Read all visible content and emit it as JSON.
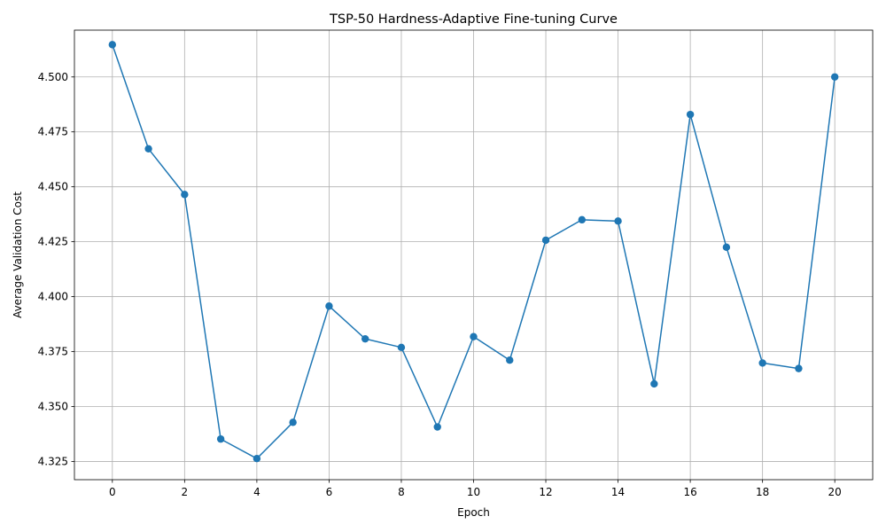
{
  "chart_data": {
    "type": "line",
    "title": "TSP-50 Hardness-Adaptive Fine-tuning Curve",
    "xlabel": "Epoch",
    "ylabel": "Average Validation Cost",
    "x": [
      0,
      1,
      2,
      3,
      4,
      5,
      6,
      7,
      8,
      9,
      10,
      11,
      12,
      13,
      14,
      15,
      16,
      17,
      18,
      19,
      20
    ],
    "series": [
      {
        "values": [
          4.5147,
          4.4673,
          4.4465,
          4.3352,
          4.3263,
          4.3428,
          4.3957,
          4.3808,
          4.3769,
          4.3407,
          4.3818,
          4.3711,
          4.4257,
          4.435,
          4.4344,
          4.3603,
          4.4829,
          4.4225,
          4.3698,
          4.3673,
          4.5
        ],
        "color": "#1f77b4",
        "marker": "circle"
      }
    ],
    "xlim": [
      -1.05,
      21.05
    ],
    "ylim": [
      4.3167,
      4.5213
    ],
    "xticks": [
      0,
      2,
      4,
      6,
      8,
      10,
      12,
      14,
      16,
      18,
      20
    ],
    "xtick_labels": [
      "0",
      "2",
      "4",
      "6",
      "8",
      "10",
      "12",
      "14",
      "16",
      "18",
      "20"
    ],
    "yticks": [
      4.325,
      4.35,
      4.375,
      4.4,
      4.425,
      4.45,
      4.475,
      4.5
    ],
    "ytick_labels": [
      "4.325",
      "4.350",
      "4.375",
      "4.400",
      "4.425",
      "4.450",
      "4.475",
      "4.500"
    ],
    "grid": true,
    "legend": "none"
  }
}
